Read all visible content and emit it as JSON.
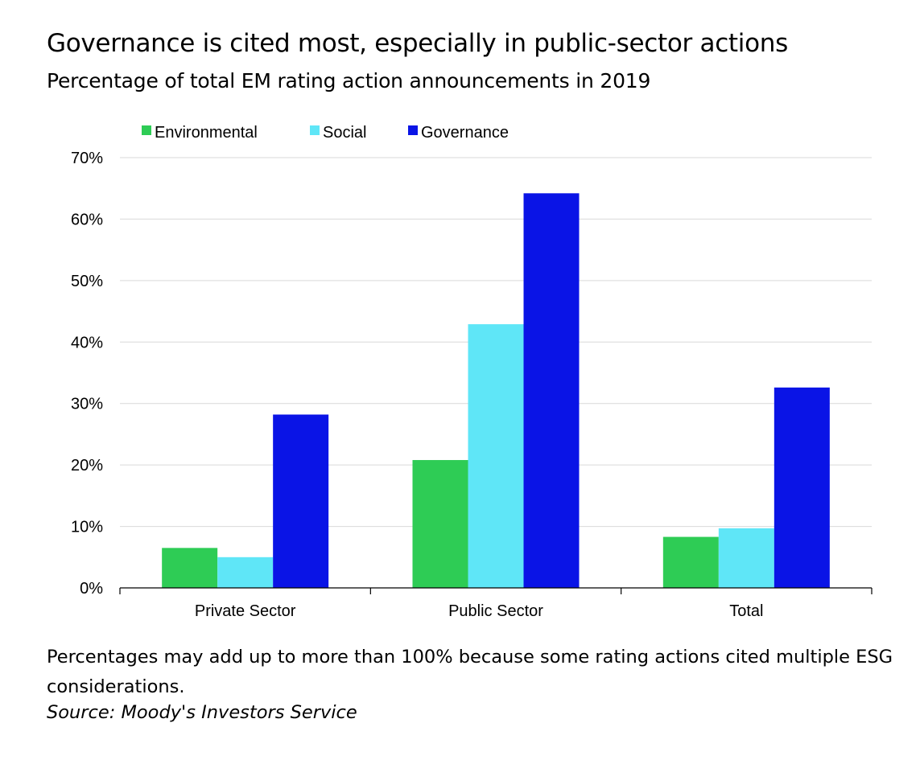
{
  "title": "Governance is cited most, especially in public-sector actions",
  "subtitle": "Percentage of total EM rating action announcements in 2019",
  "note": "Percentages may add up to more than 100% because some rating actions cited multiple ESG considerations.",
  "source": "Source: Moody's Investors Service",
  "chart_data": {
    "type": "bar",
    "categories": [
      "Private Sector",
      "Public Sector",
      "Total"
    ],
    "series": [
      {
        "name": "Environmental",
        "color": "#2ecc55",
        "values": [
          6.5,
          20.8,
          8.3
        ]
      },
      {
        "name": "Social",
        "color": "#5fe6f7",
        "values": [
          5.0,
          42.9,
          9.7
        ]
      },
      {
        "name": "Governance",
        "color": "#0a14e6",
        "values": [
          28.2,
          64.2,
          32.6
        ]
      }
    ],
    "ylim": [
      0,
      70
    ],
    "yticks": [
      "0%",
      "10%",
      "20%",
      "30%",
      "40%",
      "50%",
      "60%",
      "70%"
    ],
    "grid": true,
    "legend": "top-left"
  }
}
